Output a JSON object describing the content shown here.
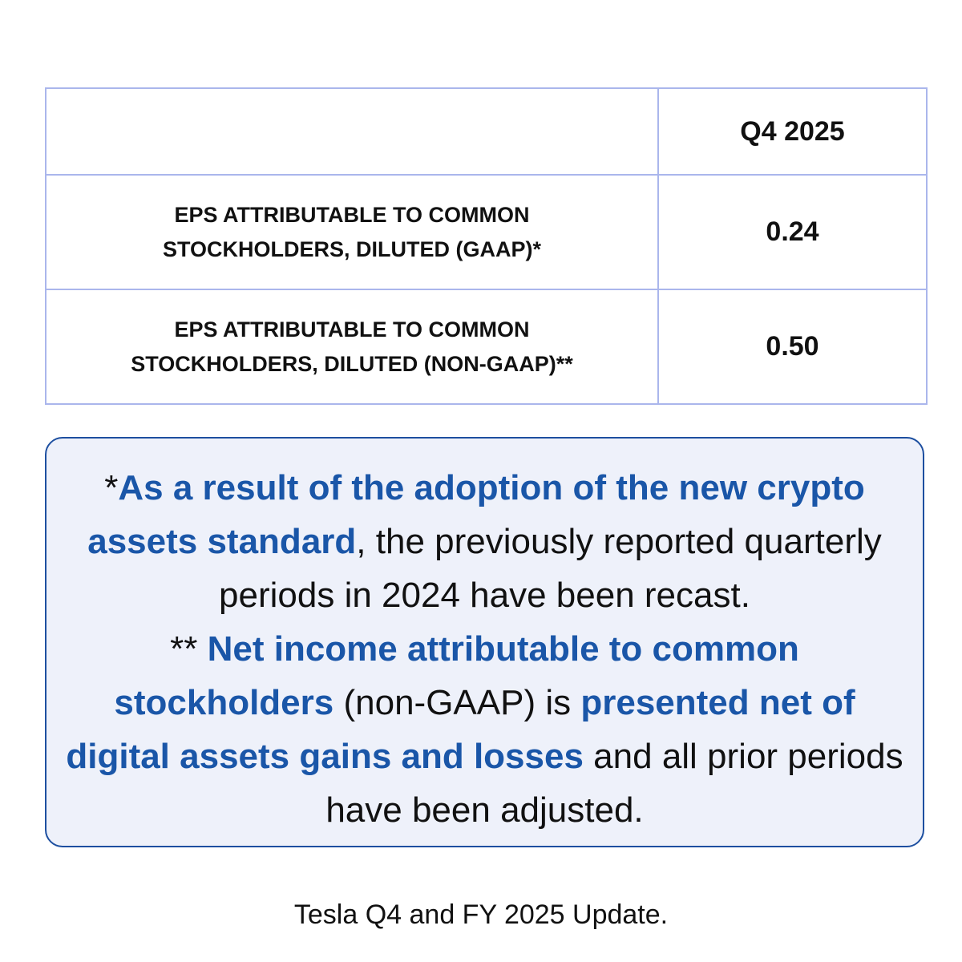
{
  "table": {
    "header": {
      "column": "Q4 2025"
    },
    "rows": [
      {
        "label": "EPS ATTRIBUTABLE TO COMMON STOCKHOLDERS, DILUTED (GAAP)*",
        "value": "0.24"
      },
      {
        "label": "EPS ATTRIBUTABLE TO COMMON STOCKHOLDERS, DILUTED (NON-GAAP)**",
        "value": "0.50"
      }
    ]
  },
  "notes": [
    [
      {
        "text": "*",
        "bold": false
      },
      {
        "text": "As a result of the adoption of the new crypto assets standard",
        "bold": true
      },
      {
        "text": ", the previously reported quarterly periods in 2024 have been recast.",
        "bold": false
      }
    ],
    [
      {
        "text": "** ",
        "bold": false
      },
      {
        "text": "Net income attributable to common stockholders",
        "bold": true
      },
      {
        "text": " (non-GAAP) is ",
        "bold": false
      },
      {
        "text": "presented net of digital assets gains and losses",
        "bold": true
      },
      {
        "text": " and all prior periods have been adjusted.",
        "bold": false
      }
    ]
  ],
  "source": "Tesla Q4 and FY 2025 Update."
}
